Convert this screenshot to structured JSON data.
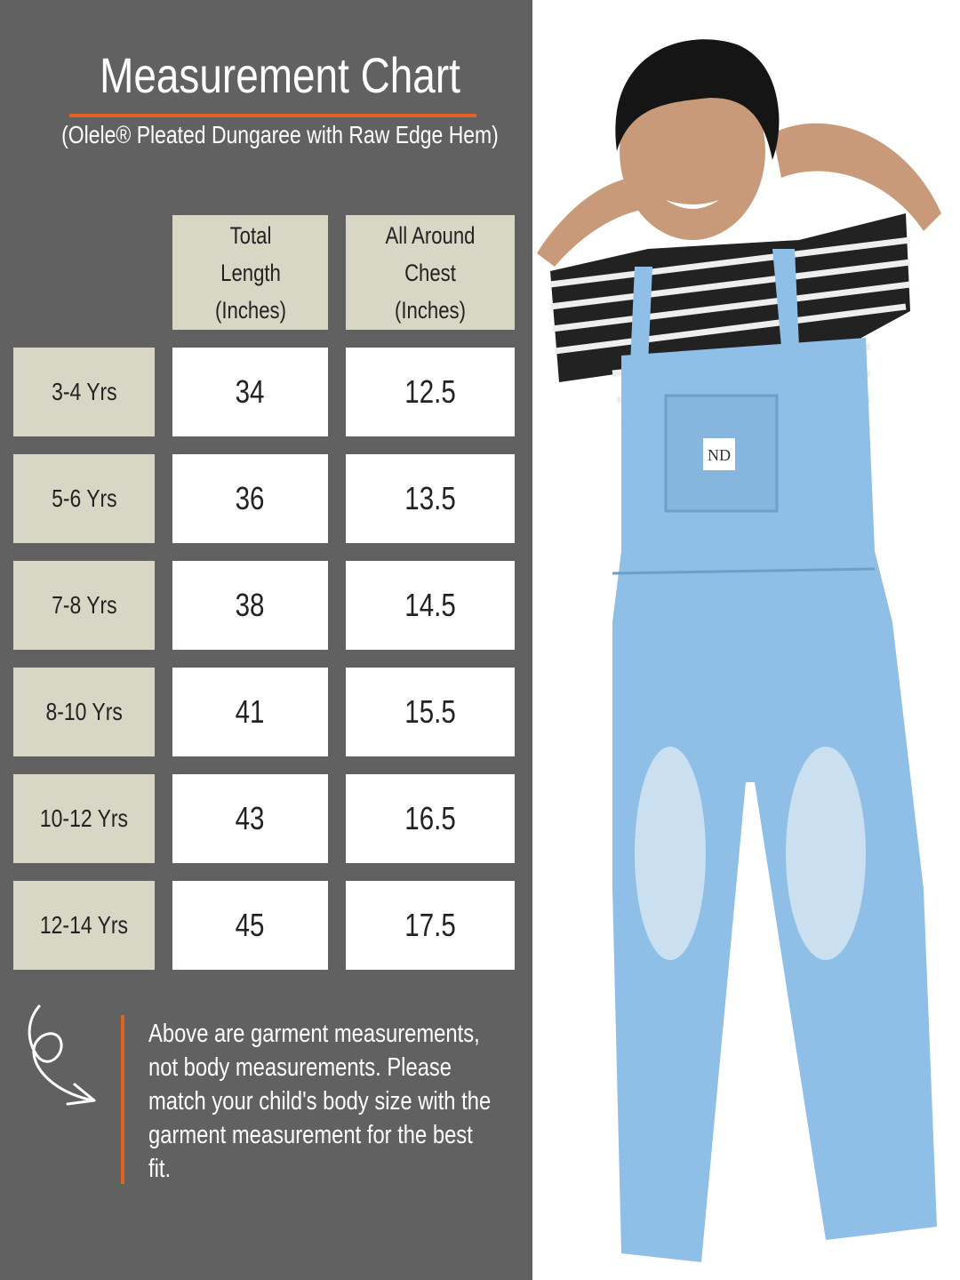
{
  "title": "Measurement Chart",
  "subtitle": "(Olele® Pleated Dungaree with Raw Edge Hem)",
  "colors": {
    "panel": "#616161",
    "cell_header": "#d8d7c6",
    "accent": "#e0641e",
    "denim": "#8fbfe6"
  },
  "table": {
    "headers": [
      "Total Length (Inches)",
      "All Around Chest (Inches)"
    ],
    "rows": [
      {
        "size": "3-4 Yrs",
        "length": "34",
        "chest": "12.5"
      },
      {
        "size": "5-6 Yrs",
        "length": "36",
        "chest": "13.5"
      },
      {
        "size": "7-8 Yrs",
        "length": "38",
        "chest": "14.5"
      },
      {
        "size": "8-10 Yrs",
        "length": "41",
        "chest": "15.5"
      },
      {
        "size": "10-12 Yrs",
        "length": "43",
        "chest": "16.5"
      },
      {
        "size": "12-14 Yrs",
        "length": "45",
        "chest": "17.5"
      }
    ]
  },
  "note": "Above are garment measurements, not body measurements. Please match your child's body size with the garment measurement for the best fit.",
  "photo": {
    "pocket_label": "ND"
  },
  "icons": {
    "note_arrow": "curly-arrow-icon"
  }
}
